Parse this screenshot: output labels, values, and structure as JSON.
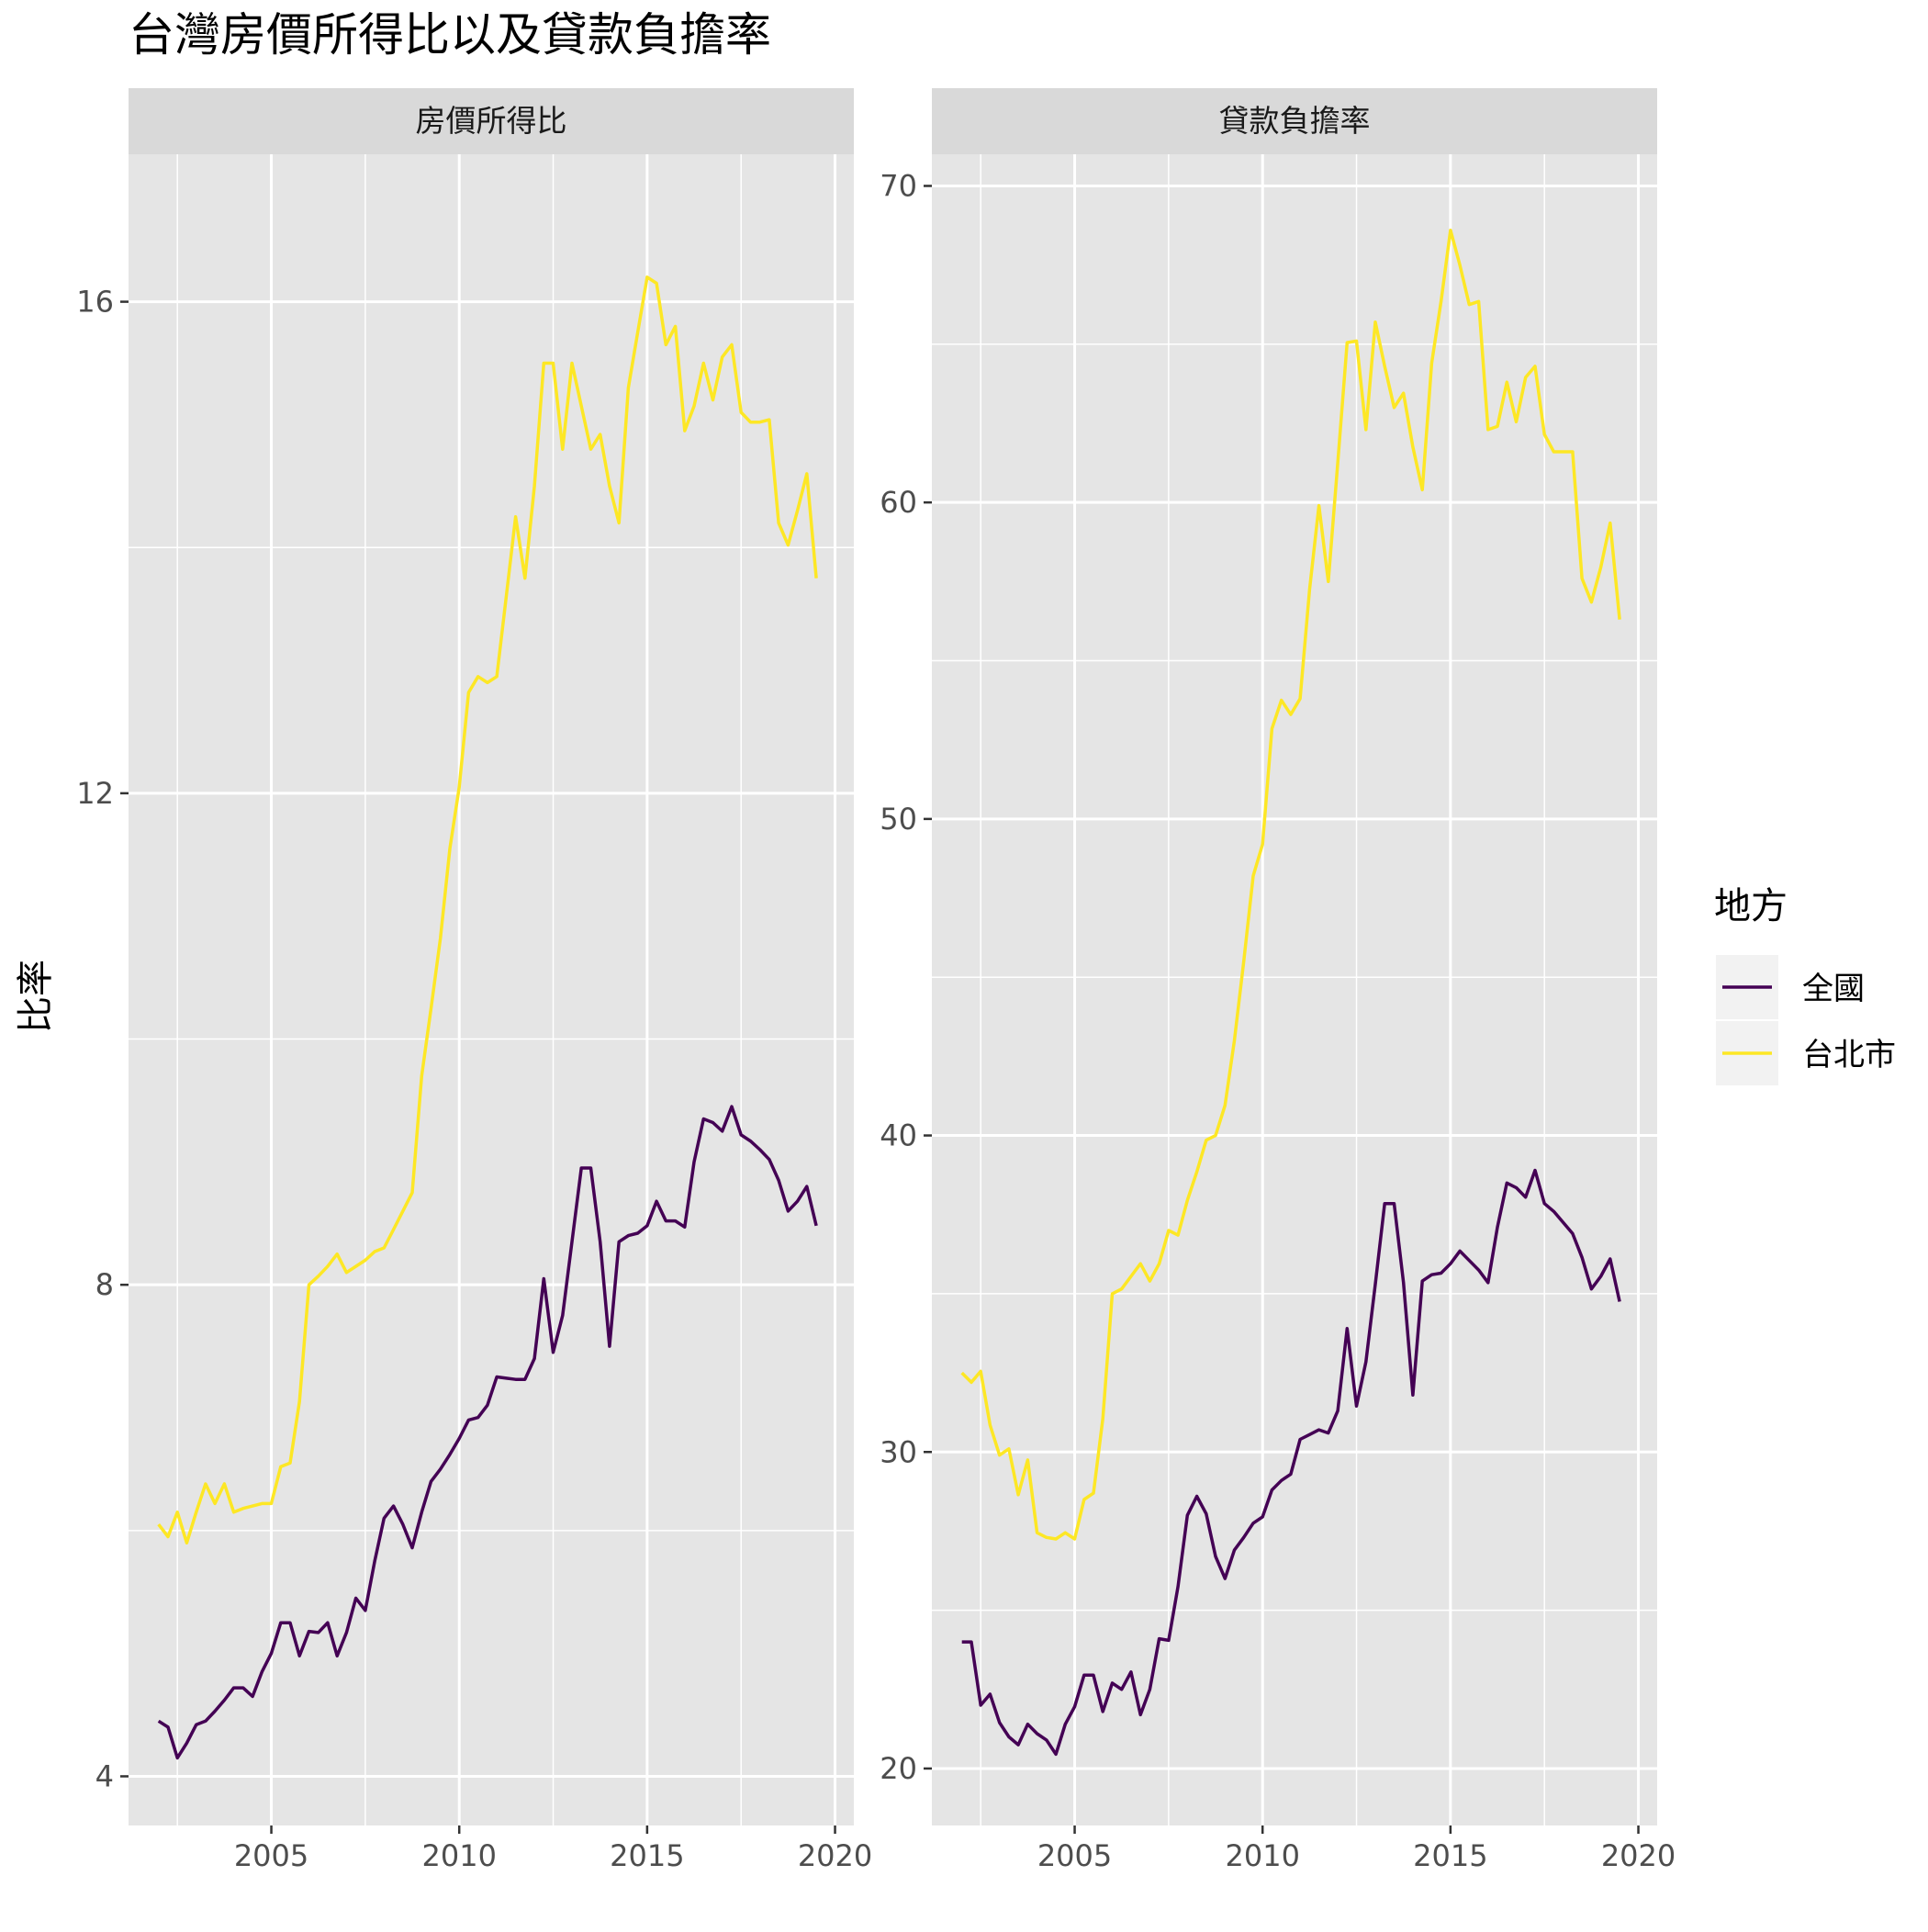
{
  "chart_data": {
    "type": "line",
    "title": "台灣房價所得比以及貸款負擔率",
    "ylabel": "比率",
    "xlabel": "",
    "legend": {
      "title": "地方",
      "position": "right",
      "entries": [
        {
          "name": "全國",
          "color": "#440154"
        },
        {
          "name": "台北市",
          "color": "#FDE725"
        }
      ]
    },
    "grid": true,
    "colors": {
      "panel_bg": "#E5E5E5",
      "strip_bg": "#D9D9D9",
      "grid": "#FFFFFF"
    },
    "x_start": 2002.0,
    "x_step": 0.25,
    "panels": [
      {
        "strip": "房價所得比",
        "xlim": [
          2001.2,
          2020.5
        ],
        "ylim": [
          3.6,
          17.2
        ],
        "xticks": [
          2005,
          2010,
          2015,
          2020
        ],
        "yticks": [
          4,
          8,
          12,
          16
        ],
        "series": [
          {
            "name": "全國",
            "color": "#440154",
            "values": [
              4.45,
              4.4,
              4.15,
              4.27,
              4.42,
              4.45,
              4.53,
              4.62,
              4.72,
              4.72,
              4.65,
              4.85,
              5.0,
              5.25,
              5.25,
              4.98,
              5.18,
              5.17,
              5.25,
              4.98,
              5.17,
              5.45,
              5.35,
              5.75,
              6.1,
              6.2,
              6.05,
              5.86,
              6.15,
              6.4,
              6.5,
              6.62,
              6.75,
              6.9,
              6.92,
              7.02,
              7.25,
              7.24,
              7.23,
              7.23,
              7.4,
              8.05,
              7.45,
              7.75,
              8.35,
              8.95,
              8.95,
              8.35,
              7.5,
              8.35,
              8.4,
              8.42,
              8.48,
              8.68,
              8.52,
              8.52,
              8.47,
              9.0,
              9.35,
              9.32,
              9.25,
              9.45,
              9.22,
              9.17,
              9.1,
              9.02,
              8.85,
              8.6,
              8.68,
              8.8,
              8.48
            ]
          },
          {
            "name": "台北市",
            "color": "#FDE725",
            "values": [
              6.05,
              5.95,
              6.15,
              5.9,
              6.15,
              6.38,
              6.22,
              6.38,
              6.15,
              6.18,
              6.2,
              6.22,
              6.22,
              6.52,
              6.55,
              7.05,
              8.0,
              8.07,
              8.15,
              8.25,
              8.1,
              8.15,
              8.2,
              8.27,
              8.3,
              8.45,
              8.6,
              8.75,
              9.7,
              10.25,
              10.82,
              11.55,
              12.05,
              12.82,
              12.95,
              12.9,
              12.95,
              13.6,
              14.25,
              13.75,
              14.5,
              15.5,
              15.5,
              14.8,
              15.5,
              15.15,
              14.8,
              14.92,
              14.5,
              14.2,
              15.3,
              15.75,
              16.2,
              16.15,
              15.65,
              15.8,
              14.95,
              15.15,
              15.5,
              15.2,
              15.55,
              15.65,
              15.1,
              15.02,
              15.02,
              15.04,
              14.2,
              14.02,
              14.3,
              14.6,
              13.75
            ]
          }
        ]
      },
      {
        "strip": "貸款負擔率",
        "xlim": [
          2001.2,
          2020.5
        ],
        "ylim": [
          18.2,
          71.0
        ],
        "xticks": [
          2005,
          2010,
          2015,
          2020
        ],
        "yticks": [
          20,
          30,
          40,
          50,
          60,
          70
        ],
        "series": [
          {
            "name": "全國",
            "color": "#440154",
            "values": [
              24.0,
              24.0,
              22.0,
              22.35,
              21.45,
              21.0,
              20.75,
              21.4,
              21.1,
              20.9,
              20.45,
              21.4,
              21.95,
              22.95,
              22.95,
              21.8,
              22.7,
              22.5,
              23.05,
              21.7,
              22.5,
              24.1,
              24.05,
              25.75,
              28.0,
              28.6,
              28.05,
              26.7,
              26.0,
              26.9,
              27.3,
              27.75,
              27.95,
              28.8,
              29.1,
              29.3,
              30.4,
              30.55,
              30.7,
              30.6,
              31.3,
              33.9,
              31.45,
              32.85,
              35.3,
              37.85,
              37.85,
              35.35,
              31.8,
              35.4,
              35.6,
              35.65,
              35.95,
              36.35,
              36.05,
              35.75,
              35.35,
              37.1,
              38.5,
              38.35,
              38.05,
              38.9,
              37.85,
              37.6,
              37.25,
              36.9,
              36.15,
              35.15,
              35.55,
              36.1,
              34.75
            ]
          },
          {
            "name": "台北市",
            "color": "#FDE725",
            "values": [
              32.5,
              32.2,
              32.55,
              30.85,
              29.9,
              30.1,
              28.65,
              29.75,
              27.45,
              27.3,
              27.25,
              27.45,
              27.25,
              28.5,
              28.7,
              31.05,
              35.0,
              35.15,
              35.55,
              35.95,
              35.4,
              35.95,
              37.0,
              36.85,
              37.95,
              38.85,
              39.85,
              40.0,
              40.95,
              43.0,
              45.5,
              48.2,
              49.2,
              52.85,
              53.75,
              53.3,
              53.8,
              57.25,
              59.9,
              57.5,
              61.25,
              65.05,
              65.1,
              62.3,
              65.7,
              64.3,
              63.0,
              63.45,
              61.75,
              60.4,
              64.4,
              66.35,
              68.6,
              67.5,
              66.25,
              66.35,
              62.3,
              62.4,
              63.8,
              62.55,
              63.95,
              64.3,
              62.15,
              61.6,
              61.6,
              61.6,
              57.6,
              56.85,
              57.95,
              59.35,
              56.3
            ]
          }
        ]
      }
    ]
  }
}
